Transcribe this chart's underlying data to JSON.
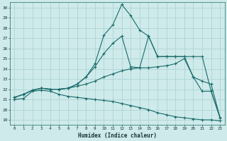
{
  "xlabel": "Humidex (Indice chaleur)",
  "xlim": [
    -0.5,
    23.5
  ],
  "ylim": [
    18.5,
    30.5
  ],
  "yticks": [
    19,
    20,
    21,
    22,
    23,
    24,
    25,
    26,
    27,
    28,
    29,
    30
  ],
  "xticks": [
    0,
    1,
    2,
    3,
    4,
    5,
    6,
    7,
    8,
    9,
    10,
    11,
    12,
    13,
    14,
    15,
    16,
    17,
    18,
    19,
    20,
    21,
    22,
    23
  ],
  "bg_color": "#ceeaea",
  "grid_color": "#aacfcf",
  "line_color": "#1a6b6b",
  "lines": [
    {
      "x": [
        0,
        1,
        2,
        3,
        4,
        5,
        6,
        7,
        8,
        9,
        10,
        11,
        12,
        13,
        14,
        15,
        16,
        17,
        18,
        19,
        20,
        21,
        22,
        23
      ],
      "y": [
        21.0,
        21.1,
        21.8,
        21.9,
        21.8,
        21.5,
        21.3,
        21.2,
        21.1,
        21.0,
        20.9,
        20.8,
        20.6,
        20.4,
        20.2,
        20.0,
        19.7,
        19.5,
        19.3,
        19.2,
        19.1,
        19.0,
        19.0,
        18.9
      ]
    },
    {
      "x": [
        0,
        1,
        2,
        3,
        4,
        5,
        6,
        7,
        8,
        9,
        10,
        11,
        12,
        13,
        14,
        15,
        16,
        17,
        18,
        19,
        20,
        21,
        22,
        23
      ],
      "y": [
        21.2,
        21.5,
        21.9,
        22.1,
        22.0,
        22.0,
        22.1,
        22.3,
        22.5,
        22.8,
        23.2,
        23.5,
        23.8,
        24.0,
        24.1,
        24.1,
        24.2,
        24.3,
        24.5,
        25.0,
        23.2,
        22.8,
        22.5,
        19.2
      ]
    },
    {
      "x": [
        0,
        1,
        2,
        3,
        4,
        5,
        6,
        7,
        8,
        9,
        10,
        11,
        12,
        13,
        14,
        15,
        16,
        17,
        18,
        19,
        20,
        21,
        22,
        23
      ],
      "y": [
        21.2,
        21.5,
        21.9,
        22.1,
        22.0,
        22.0,
        22.1,
        22.5,
        23.2,
        24.2,
        25.5,
        26.5,
        27.2,
        24.2,
        24.1,
        27.2,
        25.2,
        25.2,
        25.2,
        25.2,
        25.2,
        25.2,
        21.8,
        19.2
      ]
    },
    {
      "x": [
        0,
        1,
        2,
        3,
        4,
        5,
        6,
        7,
        8,
        9,
        10,
        11,
        12,
        13,
        14,
        15,
        16,
        17,
        18,
        19,
        20,
        21,
        22,
        23
      ],
      "y": [
        21.2,
        21.5,
        21.9,
        22.1,
        22.0,
        22.0,
        22.1,
        22.5,
        23.2,
        24.5,
        27.3,
        28.3,
        30.3,
        29.2,
        27.8,
        27.2,
        25.2,
        25.2,
        25.2,
        25.2,
        23.2,
        21.8,
        21.8,
        19.2
      ]
    }
  ]
}
